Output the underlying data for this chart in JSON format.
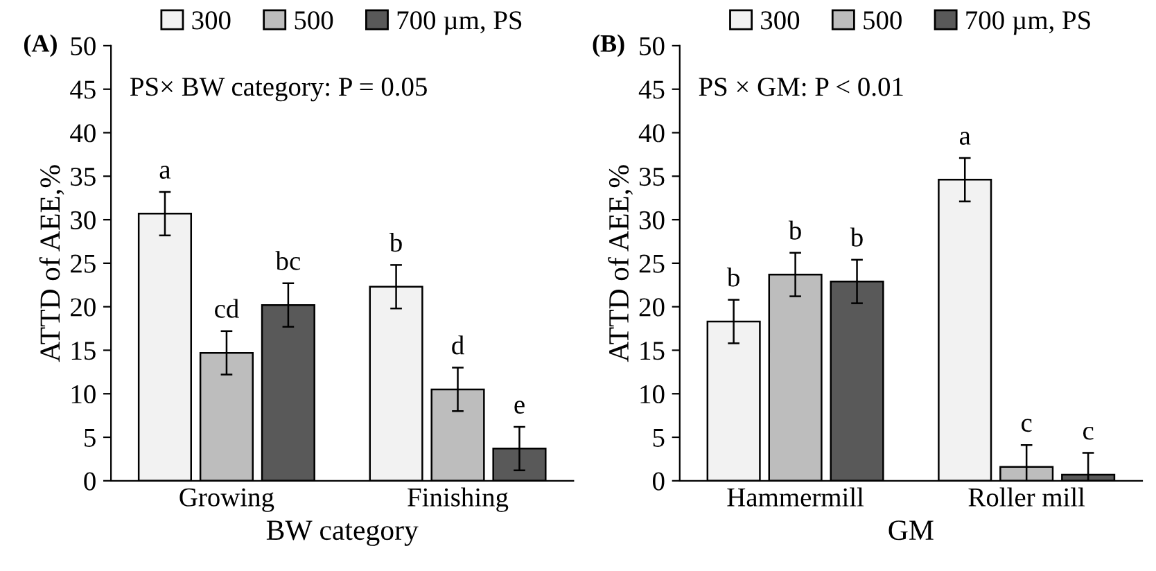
{
  "chart_data": [
    {
      "type": "bar",
      "title": "(A)",
      "xlabel": "BW category",
      "ylabel": "ATTD of AEE,%",
      "categories": [
        "Growing",
        "Finishing"
      ],
      "ylim": [
        0,
        50
      ],
      "yticks": [
        0,
        5,
        10,
        15,
        20,
        25,
        30,
        35,
        40,
        45,
        50
      ],
      "legend": "top",
      "grid": false,
      "annotations": [
        "PS× BW category: P = 0.05"
      ],
      "series": [
        {
          "name": "300",
          "color": "#f2f2f2",
          "values": [
            30.7,
            22.3
          ],
          "errors": [
            2.5,
            2.5
          ],
          "value_labels": [
            "a",
            "b"
          ]
        },
        {
          "name": "500",
          "color": "#bdbdbd",
          "values": [
            14.7,
            10.5
          ],
          "errors": [
            2.5,
            2.5
          ],
          "value_labels": [
            "cd",
            "d"
          ]
        },
        {
          "name": "700 µm, PS",
          "color": "#595959",
          "values": [
            20.2,
            3.7
          ],
          "errors": [
            2.5,
            2.5
          ],
          "value_labels": [
            "bc",
            "e"
          ]
        }
      ]
    },
    {
      "type": "bar",
      "title": "(B)",
      "xlabel": "GM",
      "ylabel": "ATTD of AEE,%",
      "categories": [
        "Hammermill",
        "Roller mill"
      ],
      "ylim": [
        0,
        50
      ],
      "yticks": [
        0,
        5,
        10,
        15,
        20,
        25,
        30,
        35,
        40,
        45,
        50
      ],
      "legend": "top",
      "grid": false,
      "annotations": [
        "PS × GM: P < 0.01"
      ],
      "series": [
        {
          "name": "300",
          "color": "#f2f2f2",
          "values": [
            18.3,
            34.6
          ],
          "errors": [
            2.5,
            2.5
          ],
          "value_labels": [
            "b",
            "a"
          ]
        },
        {
          "name": "500",
          "color": "#bdbdbd",
          "values": [
            23.7,
            1.6
          ],
          "errors": [
            2.5,
            2.5
          ],
          "value_labels": [
            "b",
            "c"
          ]
        },
        {
          "name": "700 µm, PS",
          "color": "#595959",
          "values": [
            22.9,
            0.7
          ],
          "errors": [
            2.5,
            2.5
          ],
          "value_labels": [
            "b",
            "c"
          ]
        }
      ]
    }
  ]
}
